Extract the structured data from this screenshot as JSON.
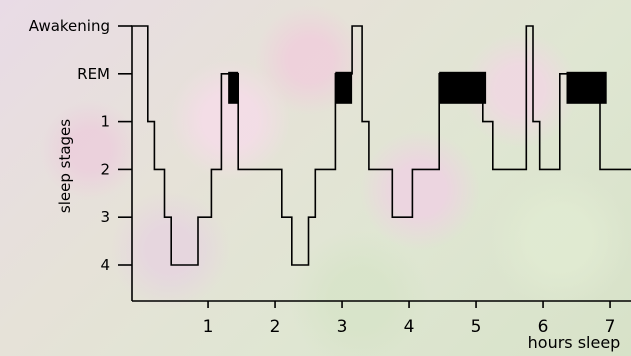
{
  "chart_data": {
    "type": "line",
    "title": "",
    "xlabel": "hours sleep",
    "ylabel": "sleep stages",
    "x_ticks": [
      "1",
      "2",
      "3",
      "4",
      "5",
      "6",
      "7"
    ],
    "y_ticks": [
      "Awakening",
      "REM",
      "1",
      "2",
      "3",
      "4"
    ],
    "y_levels": {
      "Awakening": 0,
      "REM": 1,
      "1": 2,
      "2": 3,
      "3": 4,
      "4": 5
    },
    "xlim": [
      -0.15,
      7.5
    ],
    "steps": [
      [
        -0.15,
        0
      ],
      [
        0.1,
        0
      ],
      [
        0.1,
        2
      ],
      [
        0.2,
        2
      ],
      [
        0.2,
        3
      ],
      [
        0.35,
        3
      ],
      [
        0.35,
        4
      ],
      [
        0.45,
        4
      ],
      [
        0.45,
        5
      ],
      [
        0.85,
        5
      ],
      [
        0.85,
        4
      ],
      [
        1.05,
        4
      ],
      [
        1.05,
        3
      ],
      [
        1.2,
        3
      ],
      [
        1.2,
        1
      ],
      [
        1.45,
        1
      ],
      [
        1.45,
        3
      ],
      [
        2.1,
        3
      ],
      [
        2.1,
        4
      ],
      [
        2.25,
        4
      ],
      [
        2.25,
        5
      ],
      [
        2.5,
        5
      ],
      [
        2.5,
        4
      ],
      [
        2.6,
        4
      ],
      [
        2.6,
        3
      ],
      [
        2.9,
        3
      ],
      [
        2.9,
        1
      ],
      [
        3.15,
        1
      ],
      [
        3.15,
        0
      ],
      [
        3.3,
        0
      ],
      [
        3.3,
        2
      ],
      [
        3.4,
        2
      ],
      [
        3.4,
        3
      ],
      [
        3.75,
        3
      ],
      [
        3.75,
        4
      ],
      [
        4.05,
        4
      ],
      [
        4.05,
        3
      ],
      [
        4.45,
        3
      ],
      [
        4.45,
        1
      ],
      [
        5.1,
        1
      ],
      [
        5.1,
        2
      ],
      [
        5.25,
        2
      ],
      [
        5.25,
        3
      ],
      [
        5.75,
        3
      ],
      [
        5.75,
        0
      ],
      [
        5.85,
        0
      ],
      [
        5.85,
        2
      ],
      [
        5.95,
        2
      ],
      [
        5.95,
        3
      ],
      [
        6.25,
        3
      ],
      [
        6.25,
        1
      ],
      [
        6.85,
        1
      ],
      [
        6.85,
        3
      ],
      [
        7.5,
        3
      ]
    ],
    "rem_periods": [
      [
        1.3,
        1.45
      ],
      [
        2.9,
        3.15
      ],
      [
        4.45,
        5.15
      ],
      [
        6.35,
        6.95
      ]
    ],
    "grid": false,
    "legend": "none"
  },
  "colors": {
    "line": "#000000",
    "rem_block": "#000000",
    "background": "#e4e0d6"
  },
  "background_image": "pink blossoms on green foliage, faded"
}
